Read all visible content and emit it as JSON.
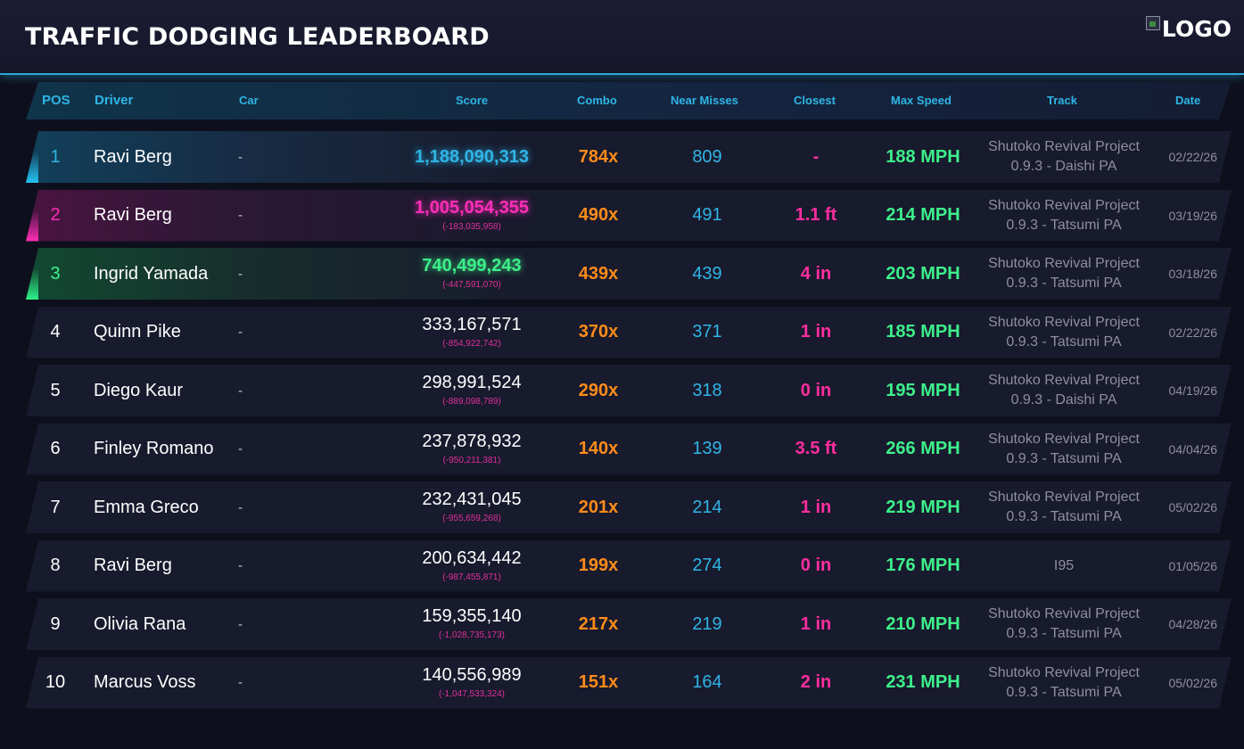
{
  "header": {
    "title": "TRAFFIC DODGING LEADERBOARD",
    "logo_text": "LOGO"
  },
  "columns": {
    "pos": "POS",
    "driver": "Driver",
    "car": "Car",
    "score": "Score",
    "combo": "Combo",
    "near_misses": "Near Misses",
    "closest": "Closest",
    "max_speed": "Max Speed",
    "track": "Track",
    "date": "Date"
  },
  "rows": [
    {
      "pos": "1",
      "driver": "Ravi Berg",
      "car": "-",
      "score": "1,188,090,313",
      "diff": "",
      "combo": "784x",
      "near_misses": "809",
      "closest": "-",
      "max_speed": "188 MPH",
      "track": "Shutoko Revival Project 0.9.3 - Daishi PA",
      "date": "02/22/26"
    },
    {
      "pos": "2",
      "driver": "Ravi Berg",
      "car": "-",
      "score": "1,005,054,355",
      "diff": "(-183,035,958)",
      "combo": "490x",
      "near_misses": "491",
      "closest": "1.1 ft",
      "max_speed": "214 MPH",
      "track": "Shutoko Revival Project 0.9.3 - Tatsumi PA",
      "date": "03/19/26"
    },
    {
      "pos": "3",
      "driver": "Ingrid Yamada",
      "car": "-",
      "score": "740,499,243",
      "diff": "(-447,591,070)",
      "combo": "439x",
      "near_misses": "439",
      "closest": "4 in",
      "max_speed": "203 MPH",
      "track": "Shutoko Revival Project 0.9.3 - Tatsumi PA",
      "date": "03/18/26"
    },
    {
      "pos": "4",
      "driver": "Quinn Pike",
      "car": "-",
      "score": "333,167,571",
      "diff": "(-854,922,742)",
      "combo": "370x",
      "near_misses": "371",
      "closest": "1 in",
      "max_speed": "185 MPH",
      "track": "Shutoko Revival Project 0.9.3 - Tatsumi PA",
      "date": "02/22/26"
    },
    {
      "pos": "5",
      "driver": "Diego Kaur",
      "car": "-",
      "score": "298,991,524",
      "diff": "(-889,098,789)",
      "combo": "290x",
      "near_misses": "318",
      "closest": "0 in",
      "max_speed": "195 MPH",
      "track": "Shutoko Revival Project 0.9.3 - Daishi PA",
      "date": "04/19/26"
    },
    {
      "pos": "6",
      "driver": "Finley Romano",
      "car": "-",
      "score": "237,878,932",
      "diff": "(-950,211,381)",
      "combo": "140x",
      "near_misses": "139",
      "closest": "3.5 ft",
      "max_speed": "266 MPH",
      "track": "Shutoko Revival Project 0.9.3 - Tatsumi PA",
      "date": "04/04/26"
    },
    {
      "pos": "7",
      "driver": "Emma Greco",
      "car": "-",
      "score": "232,431,045",
      "diff": "(-955,659,268)",
      "combo": "201x",
      "near_misses": "214",
      "closest": "1 in",
      "max_speed": "219 MPH",
      "track": "Shutoko Revival Project 0.9.3 - Tatsumi PA",
      "date": "05/02/26"
    },
    {
      "pos": "8",
      "driver": "Ravi Berg",
      "car": "-",
      "score": "200,634,442",
      "diff": "(-987,455,871)",
      "combo": "199x",
      "near_misses": "274",
      "closest": "0 in",
      "max_speed": "176 MPH",
      "track": "I95",
      "date": "01/05/26"
    },
    {
      "pos": "9",
      "driver": "Olivia Rana",
      "car": "-",
      "score": "159,355,140",
      "diff": "(-1,028,735,173)",
      "combo": "217x",
      "near_misses": "219",
      "closest": "1 in",
      "max_speed": "210 MPH",
      "track": "Shutoko Revival Project 0.9.3 - Tatsumi PA",
      "date": "04/28/26"
    },
    {
      "pos": "10",
      "driver": "Marcus Voss",
      "car": "-",
      "score": "140,556,989",
      "diff": "(-1,047,533,324)",
      "combo": "151x",
      "near_misses": "164",
      "closest": "2 in",
      "max_speed": "231 MPH",
      "track": "Shutoko Revival Project 0.9.3 - Tatsumi PA",
      "date": "05/02/26"
    }
  ],
  "colors": {
    "accent_cyan": "#2fb5e6",
    "accent_magenta": "#ff2eb8",
    "accent_green": "#3df08a",
    "combo_orange": "#ff8c1a",
    "background": "#0e0f1c"
  }
}
